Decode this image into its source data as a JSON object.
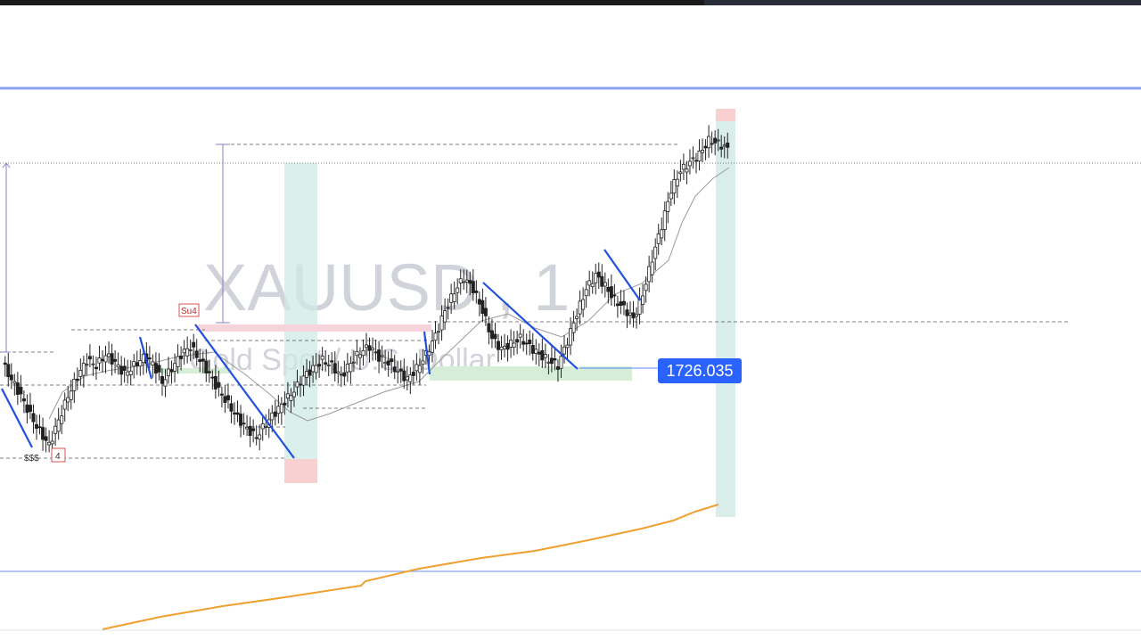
{
  "chart_data": {
    "type": "candlestick",
    "watermark": {
      "symbol": "XAUUSD , 1",
      "description": "Gold Spot / U.S. Dollar"
    },
    "last_price_label": "1726.035",
    "annotations": {
      "high_tag": "Su4",
      "low_tag": "4",
      "sss_label": "$$$"
    },
    "series": [
      {
        "type": "candles",
        "values": [
          1721.0,
          1720.4,
          1719.8,
          1719.1,
          1718.5,
          1718.0,
          1718.9,
          1719.8,
          1720.5,
          1721.1,
          1720.9,
          1721.3,
          1721.0,
          1720.6,
          1720.9,
          1721.2,
          1721.0,
          1720.3,
          1720.8,
          1721.3,
          1721.6,
          1721.1,
          1720.6,
          1720.0,
          1719.5,
          1719.0,
          1718.6,
          1718.3,
          1718.8,
          1719.2,
          1719.6,
          1720.0,
          1720.5,
          1720.8,
          1721.1,
          1720.9,
          1720.5,
          1721.0,
          1721.4,
          1721.6,
          1721.2,
          1721.0,
          1720.7,
          1720.4,
          1720.8,
          1721.3,
          1722.0,
          1722.9,
          1723.6,
          1724.1,
          1723.7,
          1722.9,
          1721.9,
          1721.5,
          1721.7,
          1721.9,
          1721.6,
          1721.3,
          1721.1,
          1720.9,
          1721.8,
          1722.8,
          1723.7,
          1724.2,
          1723.8,
          1723.3,
          1723.0,
          1722.6,
          1723.5,
          1724.8,
          1726.0,
          1727.3,
          1728.0,
          1728.3,
          1728.6,
          1729.1,
          1729.0,
          1728.8
        ]
      }
    ]
  },
  "colors": {
    "candle": "#222222",
    "trend": "#2050e0",
    "ma_gray": "#9a9a9a",
    "ma_orange": "#f0a030",
    "blue_line": "#8aa4ef",
    "price_label": "#2962ff",
    "green_zone": "#cfe9e6",
    "red_zone": "#f9d0d0",
    "green_box": "#d6eed8",
    "pink_box": "#f7d3dc",
    "range_line": "#8e7cc3"
  },
  "icons": {
    "price_tag": "price-tag-icon"
  }
}
